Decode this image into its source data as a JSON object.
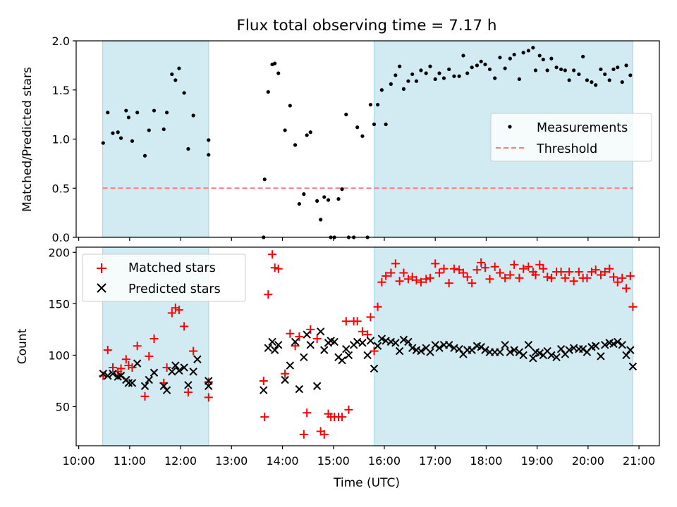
{
  "title": "Flux total observing time = 7.17 h",
  "xlabel": "Time (UTC)",
  "x_ticks": [
    "10:00",
    "11:00",
    "12:00",
    "13:00",
    "14:00",
    "15:00",
    "16:00",
    "17:00",
    "18:00",
    "19:00",
    "20:00",
    "21:00"
  ],
  "colors": {
    "shade": "#add8e6",
    "threshold": "#f08080",
    "matched": "#ff0000",
    "predicted": "#000000",
    "measure": "#000000"
  },
  "chart_data": [
    {
      "type": "scatter",
      "name": "ratio-panel",
      "ylabel": "Matched/Predicted stars",
      "xlim": [
        9.95,
        21.4
      ],
      "ylim": [
        0,
        2.0
      ],
      "y_ticks": [
        "0.0",
        "0.5",
        "1.0",
        "1.5",
        "2.0"
      ],
      "y_tick_values": [
        0,
        0.5,
        1.0,
        1.5,
        2.0
      ],
      "shaded_spans": [
        [
          10.47,
          12.55
        ],
        [
          15.8,
          20.88
        ]
      ],
      "threshold": {
        "label": "Threshold",
        "y": 0.5,
        "x": [
          10.47,
          20.88
        ]
      },
      "legend": [
        "Measurements",
        "Threshold"
      ],
      "legend_loc": "center-right",
      "series": [
        {
          "name": "Measurements",
          "x": [
            10.48,
            10.57,
            10.67,
            10.77,
            10.83,
            10.93,
            10.98,
            11.05,
            11.15,
            11.3,
            11.38,
            11.48,
            11.67,
            11.73,
            11.83,
            11.9,
            11.97,
            12.07,
            12.15,
            12.25,
            12.55,
            12.55,
            13.63,
            13.65,
            13.72,
            13.8,
            13.85,
            13.92,
            14.05,
            14.15,
            14.25,
            14.33,
            14.42,
            14.48,
            14.55,
            14.68,
            14.75,
            14.82,
            14.9,
            14.95,
            15.02,
            15.1,
            15.17,
            15.25,
            15.3,
            15.4,
            15.47,
            15.57,
            15.67,
            15.73,
            15.8,
            15.87,
            15.95,
            16.03,
            16.13,
            16.22,
            16.3,
            16.38,
            16.47,
            16.55,
            16.63,
            16.72,
            16.82,
            16.9,
            17.0,
            17.08,
            17.17,
            17.27,
            17.37,
            17.47,
            17.55,
            17.63,
            17.72,
            17.82,
            17.9,
            17.98,
            18.07,
            18.17,
            18.27,
            18.37,
            18.47,
            18.55,
            18.65,
            18.73,
            18.83,
            18.92,
            18.97,
            19.05,
            19.12,
            19.2,
            19.28,
            19.38,
            19.47,
            19.55,
            19.63,
            19.72,
            19.82,
            19.9,
            19.98,
            20.07,
            20.15,
            20.25,
            20.33,
            20.42,
            20.5,
            20.58,
            20.67,
            20.75,
            20.83
          ],
          "y": [
            0.96,
            1.27,
            1.06,
            1.07,
            1.01,
            1.29,
            1.22,
            0.98,
            1.27,
            0.83,
            1.09,
            1.29,
            1.1,
            1.27,
            1.66,
            1.6,
            1.72,
            1.47,
            0.9,
            1.24,
            0.84,
            0.99,
            0.0,
            0.59,
            1.48,
            1.76,
            1.77,
            1.67,
            1.09,
            1.34,
            0.94,
            0.34,
            0.44,
            1.04,
            1.07,
            0.37,
            0.18,
            0.41,
            0.38,
            0.0,
            0.0,
            0.39,
            0.49,
            1.25,
            0.0,
            0.0,
            1.12,
            1.03,
            0.0,
            1.35,
            1.15,
            1.35,
            1.5,
            1.15,
            1.56,
            1.65,
            1.74,
            1.51,
            1.59,
            1.66,
            1.59,
            1.7,
            1.67,
            1.74,
            1.61,
            1.67,
            1.62,
            1.71,
            1.64,
            1.64,
            1.85,
            1.67,
            1.73,
            1.75,
            1.79,
            1.76,
            1.71,
            1.62,
            1.83,
            1.72,
            1.82,
            1.86,
            1.61,
            1.88,
            1.9,
            1.93,
            1.7,
            1.85,
            1.81,
            1.7,
            1.82,
            1.73,
            1.71,
            1.7,
            1.6,
            1.7,
            1.66,
            1.84,
            1.6,
            1.58,
            1.55,
            1.71,
            1.66,
            1.6,
            1.71,
            1.73,
            1.58,
            1.75,
            1.65
          ]
        }
      ]
    },
    {
      "type": "scatter",
      "name": "count-panel",
      "ylabel": "Count",
      "xlim": [
        9.95,
        21.4
      ],
      "ylim": [
        12,
        205
      ],
      "y_ticks": [
        "50",
        "100",
        "150",
        "200"
      ],
      "y_tick_values": [
        50,
        100,
        150,
        200
      ],
      "shaded_spans": [
        [
          10.47,
          12.55
        ],
        [
          15.8,
          20.88
        ]
      ],
      "legend": [
        "Matched stars",
        "Predicted stars"
      ],
      "legend_loc": "upper-left",
      "series": [
        {
          "name": "Matched stars",
          "x": [
            10.48,
            10.57,
            10.67,
            10.77,
            10.83,
            10.93,
            10.98,
            11.05,
            11.15,
            11.3,
            11.38,
            11.48,
            11.67,
            11.73,
            11.83,
            11.9,
            11.97,
            12.07,
            12.15,
            12.25,
            12.55,
            12.55,
            13.63,
            13.65,
            13.72,
            13.8,
            13.85,
            13.92,
            14.05,
            14.15,
            14.25,
            14.33,
            14.42,
            14.48,
            14.55,
            14.68,
            14.75,
            14.82,
            14.9,
            14.95,
            15.02,
            15.1,
            15.17,
            15.25,
            15.3,
            15.4,
            15.47,
            15.57,
            15.67,
            15.73,
            15.8,
            15.87,
            15.95,
            16.03,
            16.13,
            16.22,
            16.3,
            16.38,
            16.47,
            16.55,
            16.63,
            16.72,
            16.82,
            16.9,
            17.0,
            17.08,
            17.17,
            17.27,
            17.37,
            17.47,
            17.55,
            17.63,
            17.72,
            17.82,
            17.9,
            17.98,
            18.07,
            18.17,
            18.27,
            18.37,
            18.47,
            18.55,
            18.65,
            18.73,
            18.83,
            18.92,
            18.97,
            19.05,
            19.12,
            19.2,
            19.28,
            19.38,
            19.47,
            19.55,
            19.63,
            19.72,
            19.82,
            19.9,
            19.98,
            20.07,
            20.15,
            20.25,
            20.33,
            20.42,
            20.5,
            20.58,
            20.67,
            20.75,
            20.83,
            20.88
          ],
          "y": [
            80,
            105,
            88,
            84,
            87,
            96,
            90,
            88,
            109,
            60,
            99,
            116,
            73,
            88,
            141,
            146,
            144,
            128,
            64,
            104,
            59,
            74,
            75,
            40,
            159,
            198,
            185,
            184,
            82,
            121,
            109,
            118,
            23,
            44,
            125,
            116,
            26,
            23,
            43,
            40,
            40,
            40,
            40,
            133,
            47,
            133,
            133,
            123,
            120,
            137,
            104,
            147,
            171,
            177,
            180,
            189,
            172,
            180,
            174,
            176,
            173,
            171,
            174,
            175,
            189,
            180,
            184,
            170,
            184,
            183,
            180,
            176,
            170,
            183,
            190,
            185,
            174,
            186,
            180,
            175,
            178,
            188,
            175,
            184,
            186,
            181,
            178,
            188,
            184,
            176,
            175,
            181,
            181,
            175,
            181,
            172,
            181,
            175,
            175,
            181,
            183,
            178,
            181,
            184,
            176,
            171,
            175,
            165,
            177,
            147
          ]
        },
        {
          "name": "Predicted stars",
          "x": [
            10.48,
            10.57,
            10.67,
            10.77,
            10.83,
            10.93,
            10.98,
            11.05,
            11.15,
            11.3,
            11.38,
            11.48,
            11.67,
            11.73,
            11.83,
            11.9,
            11.97,
            12.07,
            12.15,
            12.25,
            12.33,
            12.55,
            12.55,
            13.63,
            13.72,
            13.8,
            13.85,
            13.92,
            14.05,
            14.15,
            14.25,
            14.33,
            14.42,
            14.48,
            14.55,
            14.68,
            14.75,
            14.82,
            14.9,
            14.95,
            15.02,
            15.1,
            15.17,
            15.25,
            15.3,
            15.4,
            15.47,
            15.57,
            15.67,
            15.73,
            15.8,
            15.87,
            15.95,
            16.03,
            16.13,
            16.22,
            16.3,
            16.38,
            16.47,
            16.55,
            16.63,
            16.72,
            16.82,
            16.9,
            17.0,
            17.08,
            17.17,
            17.27,
            17.37,
            17.47,
            17.55,
            17.63,
            17.72,
            17.82,
            17.9,
            17.98,
            18.07,
            18.17,
            18.27,
            18.37,
            18.47,
            18.55,
            18.65,
            18.73,
            18.83,
            18.92,
            18.97,
            19.05,
            19.12,
            19.2,
            19.28,
            19.38,
            19.47,
            19.55,
            19.63,
            19.72,
            19.82,
            19.9,
            19.98,
            20.07,
            20.15,
            20.25,
            20.33,
            20.42,
            20.5,
            20.58,
            20.67,
            20.75,
            20.83,
            20.88
          ],
          "y": [
            82,
            80,
            82,
            79,
            80,
            76,
            73,
            73,
            92,
            70,
            76,
            83,
            70,
            66,
            84,
            90,
            85,
            88,
            71,
            84,
            96,
            75,
            70,
            66,
            107,
            113,
            105,
            110,
            76,
            90,
            113,
            67,
            98,
            120,
            110,
            70,
            123,
            105,
            112,
            114,
            113,
            98,
            95,
            106,
            100,
            110,
            113,
            112,
            100,
            114,
            87,
            109,
            116,
            114,
            113,
            112,
            104,
            115,
            113,
            107,
            105,
            104,
            107,
            103,
            110,
            107,
            110,
            110,
            107,
            106,
            101,
            105,
            105,
            109,
            108,
            105,
            103,
            103,
            103,
            110,
            103,
            105,
            103,
            100,
            110,
            97,
            103,
            102,
            100,
            104,
            100,
            98,
            106,
            101,
            105,
            107,
            106,
            106,
            103,
            108,
            109,
            99,
            110,
            112,
            111,
            113,
            110,
            100,
            105,
            89
          ]
        }
      ]
    }
  ]
}
